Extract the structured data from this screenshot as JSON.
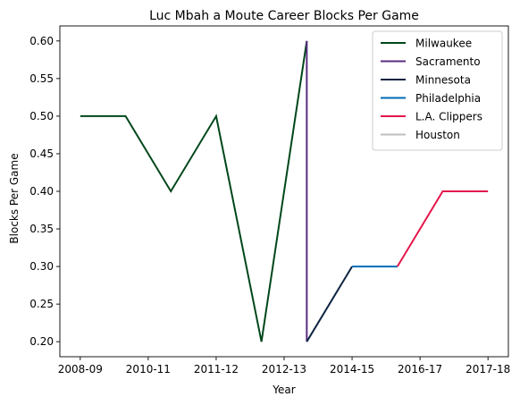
{
  "chart_data": {
    "type": "line",
    "title": "Luc Mbah a Moute Career Blocks Per Game",
    "xlabel": "Year",
    "ylabel": "Blocks Per Game",
    "x_ticks": [
      "2008-09",
      "2010-11",
      "2011-12",
      "2012-13",
      "2014-15",
      "2016-17",
      "2017-18"
    ],
    "ylim": [
      0.18,
      0.62
    ],
    "y_ticks": [
      "0.20",
      "0.25",
      "0.30",
      "0.35",
      "0.40",
      "0.45",
      "0.50",
      "0.55",
      "0.60"
    ],
    "grid": false,
    "legend_position": "top-right",
    "series": [
      {
        "name": "Milwaukee",
        "color": "#00471B",
        "points": [
          [
            0,
            0.5
          ],
          [
            1,
            0.5
          ],
          [
            2,
            0.4
          ],
          [
            3,
            0.5
          ],
          [
            4,
            0.2
          ],
          [
            5,
            0.6
          ]
        ]
      },
      {
        "name": "Sacramento",
        "color": "#5A2D81",
        "points": [
          [
            5,
            0.6
          ],
          [
            5,
            0.2
          ]
        ]
      },
      {
        "name": "Minnesota",
        "color": "#0C2340",
        "points": [
          [
            5,
            0.2
          ],
          [
            6,
            0.3
          ]
        ]
      },
      {
        "name": "Philadelphia",
        "color": "#006BB6",
        "points": [
          [
            6,
            0.3
          ],
          [
            7,
            0.3
          ]
        ]
      },
      {
        "name": "L.A. Clippers",
        "color": "#E4174B",
        "points": [
          [
            7,
            0.3
          ],
          [
            8,
            0.4
          ],
          [
            9,
            0.4
          ]
        ]
      },
      {
        "name": "Houston",
        "color": "#BFBFBF",
        "points": []
      }
    ]
  }
}
